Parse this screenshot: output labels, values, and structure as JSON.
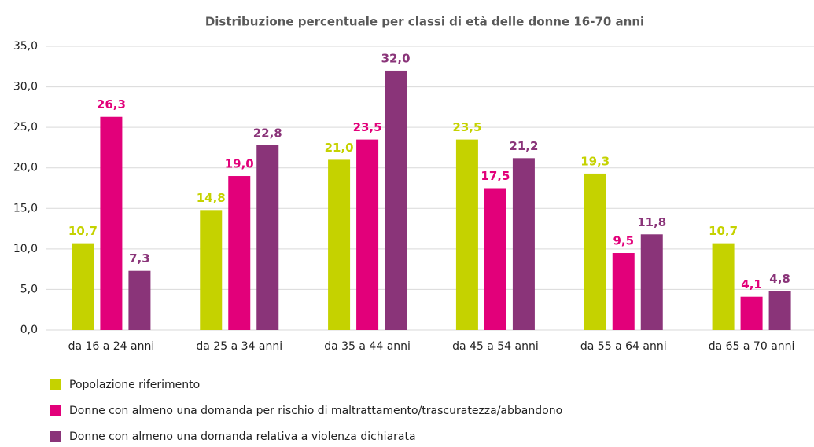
{
  "chart_data": {
    "type": "bar",
    "title": "Distribuzione percentuale per classi di età delle donne 16-70 anni",
    "categories": [
      "da 16 a 24 anni",
      "da 25 a 34 anni",
      "da 35 a 44 anni",
      "da 45 a 54 anni",
      "da 55 a 64 anni",
      "da 65 a 70 anni"
    ],
    "series": [
      {
        "name": "Popolazione riferimento",
        "color": "#c5d200",
        "values": [
          10.7,
          14.8,
          21.0,
          23.5,
          19.3,
          10.7
        ],
        "value_labels": [
          "10,7",
          "14,8",
          "21,0",
          "23,5",
          "19,3",
          "10,7"
        ]
      },
      {
        "name": "Donne con almeno una domanda per rischio di maltrattamento/trascuratezza/abbandono",
        "color": "#e2007a",
        "values": [
          26.3,
          19.0,
          23.5,
          17.5,
          9.5,
          4.1
        ],
        "value_labels": [
          "26,3",
          "19,0",
          "23,5",
          "17,5",
          "9,5",
          "4,1"
        ]
      },
      {
        "name": "Donne con almeno una domanda relativa a violenza dichiarata",
        "color": "#8a3479",
        "values": [
          7.3,
          22.8,
          32.0,
          21.2,
          11.8,
          4.8
        ],
        "value_labels": [
          "7,3",
          "22,8",
          "32,0",
          "21,2",
          "11,8",
          "4,8"
        ]
      }
    ],
    "ylim": [
      0,
      35
    ],
    "yticks": [
      {
        "value": 0,
        "label": "0,0"
      },
      {
        "value": 5,
        "label": "5,0"
      },
      {
        "value": 10,
        "label": "10,0"
      },
      {
        "value": 15,
        "label": "15,0"
      },
      {
        "value": 20,
        "label": "20,0"
      },
      {
        "value": 25,
        "label": "25,0"
      },
      {
        "value": 30,
        "label": "30,0"
      },
      {
        "value": 35,
        "label": "35,0"
      }
    ],
    "grid": true
  }
}
